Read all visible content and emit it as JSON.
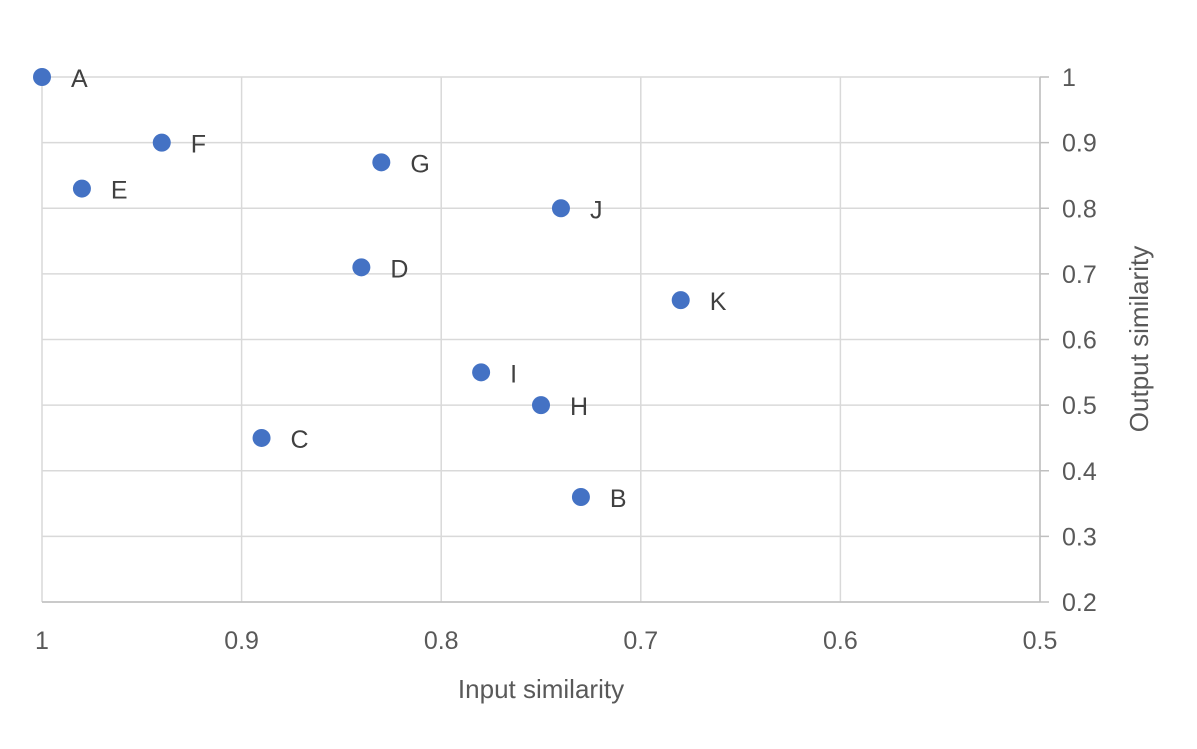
{
  "chart_data": {
    "type": "scatter",
    "xlabel": "Input similarity",
    "ylabel": "Output similarity",
    "xlim": [
      1,
      0.5
    ],
    "ylim": [
      0.2,
      1
    ],
    "x_reversed": true,
    "y_axis_position": "right",
    "grid": true,
    "x_ticks": [
      "1",
      "0.9",
      "0.8",
      "0.7",
      "0.6",
      "0.5"
    ],
    "y_ticks": [
      "0.2",
      "0.3",
      "0.4",
      "0.5",
      "0.6",
      "0.7",
      "0.8",
      "0.9",
      "1"
    ],
    "marker_color": "#4472c4",
    "points": [
      {
        "label": "A",
        "x": 1.0,
        "y": 1.0
      },
      {
        "label": "F",
        "x": 0.94,
        "y": 0.9
      },
      {
        "label": "E",
        "x": 0.98,
        "y": 0.83
      },
      {
        "label": "G",
        "x": 0.83,
        "y": 0.87
      },
      {
        "label": "J",
        "x": 0.74,
        "y": 0.8
      },
      {
        "label": "D",
        "x": 0.84,
        "y": 0.71
      },
      {
        "label": "K",
        "x": 0.68,
        "y": 0.66
      },
      {
        "label": "I",
        "x": 0.78,
        "y": 0.55
      },
      {
        "label": "H",
        "x": 0.75,
        "y": 0.5
      },
      {
        "label": "C",
        "x": 0.89,
        "y": 0.45
      },
      {
        "label": "B",
        "x": 0.73,
        "y": 0.36
      }
    ]
  }
}
